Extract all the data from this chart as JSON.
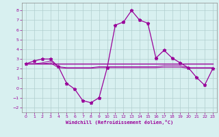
{
  "xlabel": "Windchill (Refroidissement éolien,°C)",
  "hours": [
    0,
    1,
    2,
    3,
    4,
    5,
    6,
    7,
    8,
    9,
    10,
    11,
    12,
    13,
    14,
    15,
    16,
    17,
    18,
    19,
    20,
    21,
    22,
    23
  ],
  "line1": [
    2.5,
    2.8,
    3.0,
    3.0,
    2.2,
    0.5,
    -0.1,
    -1.3,
    -1.5,
    -1.0,
    2.1,
    6.5,
    6.8,
    8.0,
    7.0,
    6.7,
    3.1,
    3.9,
    3.1,
    2.6,
    2.1,
    1.1,
    0.3,
    2.0
  ],
  "line2": [
    2.5,
    2.5,
    2.5,
    2.5,
    2.5,
    2.5,
    2.5,
    2.5,
    2.5,
    2.5,
    2.5,
    2.5,
    2.5,
    2.5,
    2.5,
    2.5,
    2.5,
    2.5,
    2.5,
    2.5,
    2.5,
    2.5,
    2.5,
    2.5
  ],
  "line3": [
    2.5,
    2.5,
    2.6,
    2.8,
    2.2,
    2.1,
    2.1,
    2.1,
    2.1,
    2.2,
    2.2,
    2.2,
    2.2,
    2.2,
    2.2,
    2.2,
    2.2,
    2.3,
    2.3,
    2.3,
    2.1,
    2.1,
    2.1,
    2.1
  ],
  "line4": [
    2.5,
    2.5,
    2.5,
    2.6,
    2.1,
    2.05,
    2.05,
    2.05,
    2.05,
    2.1,
    2.1,
    2.1,
    2.1,
    2.1,
    2.1,
    2.1,
    2.1,
    2.15,
    2.15,
    2.15,
    2.05,
    2.05,
    2.05,
    2.05
  ],
  "line_color": "#990099",
  "bg_color": "#d8f0f0",
  "grid_color": "#b0cece",
  "ylim": [
    -2.5,
    8.8
  ],
  "xlim": [
    -0.5,
    23.5
  ],
  "yticks": [
    -2,
    -1,
    0,
    1,
    2,
    3,
    4,
    5,
    6,
    7,
    8
  ],
  "xticks": [
    0,
    1,
    2,
    3,
    4,
    5,
    6,
    7,
    8,
    9,
    10,
    11,
    12,
    13,
    14,
    15,
    16,
    17,
    18,
    19,
    20,
    21,
    22,
    23
  ]
}
